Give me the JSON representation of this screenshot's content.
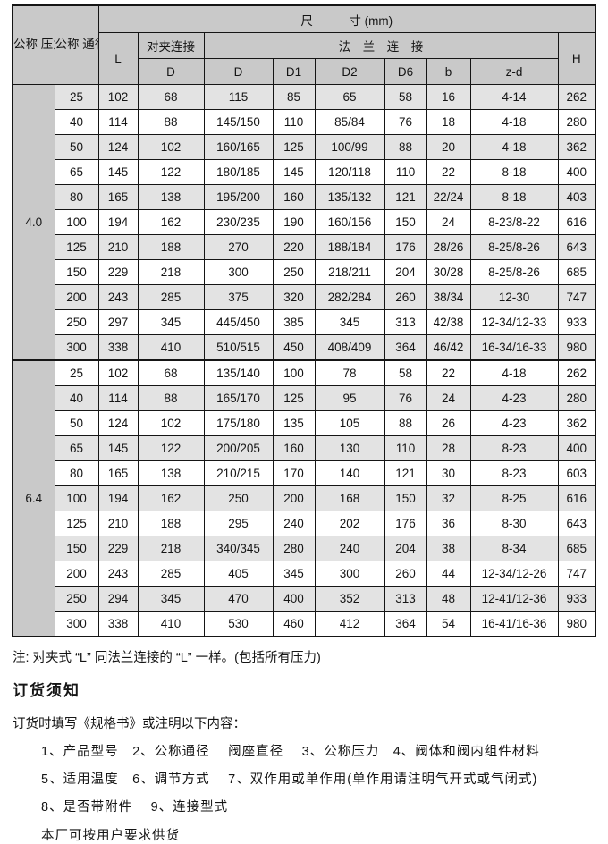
{
  "colors": {
    "header_bg": "#c9c9c9",
    "row_stripe_bg": "#e3e3e3",
    "border": "#151515"
  },
  "table": {
    "header": {
      "pn": "公称\n压力\nPN\n(MPa)",
      "dn": "公称\n通径\nDN\n(mm)",
      "size": "尺　　　寸  (mm)",
      "l": "L",
      "wafer": "对夹连接",
      "flange": "法　兰　连　接",
      "h": "H",
      "sub": [
        "D",
        "D",
        "D1",
        "D2",
        "D6",
        "b",
        "z-d"
      ]
    },
    "sections": [
      {
        "pn": "4.0",
        "rows": [
          [
            "25",
            "102",
            "68",
            "115",
            "85",
            "65",
            "58",
            "16",
            "4-14",
            "262"
          ],
          [
            "40",
            "114",
            "88",
            "145/150",
            "110",
            "85/84",
            "76",
            "18",
            "4-18",
            "280"
          ],
          [
            "50",
            "124",
            "102",
            "160/165",
            "125",
            "100/99",
            "88",
            "20",
            "4-18",
            "362"
          ],
          [
            "65",
            "145",
            "122",
            "180/185",
            "145",
            "120/118",
            "110",
            "22",
            "8-18",
            "400"
          ],
          [
            "80",
            "165",
            "138",
            "195/200",
            "160",
            "135/132",
            "121",
            "22/24",
            "8-18",
            "403"
          ],
          [
            "100",
            "194",
            "162",
            "230/235",
            "190",
            "160/156",
            "150",
            "24",
            "8-23/8-22",
            "616"
          ],
          [
            "125",
            "210",
            "188",
            "270",
            "220",
            "188/184",
            "176",
            "28/26",
            "8-25/8-26",
            "643"
          ],
          [
            "150",
            "229",
            "218",
            "300",
            "250",
            "218/211",
            "204",
            "30/28",
            "8-25/8-26",
            "685"
          ],
          [
            "200",
            "243",
            "285",
            "375",
            "320",
            "282/284",
            "260",
            "38/34",
            "12-30",
            "747"
          ],
          [
            "250",
            "297",
            "345",
            "445/450",
            "385",
            "345",
            "313",
            "42/38",
            "12-34/12-33",
            "933"
          ],
          [
            "300",
            "338",
            "410",
            "510/515",
            "450",
            "408/409",
            "364",
            "46/42",
            "16-34/16-33",
            "980"
          ]
        ]
      },
      {
        "pn": "6.4",
        "rows": [
          [
            "25",
            "102",
            "68",
            "135/140",
            "100",
            "78",
            "58",
            "22",
            "4-18",
            "262"
          ],
          [
            "40",
            "114",
            "88",
            "165/170",
            "125",
            "95",
            "76",
            "24",
            "4-23",
            "280"
          ],
          [
            "50",
            "124",
            "102",
            "175/180",
            "135",
            "105",
            "88",
            "26",
            "4-23",
            "362"
          ],
          [
            "65",
            "145",
            "122",
            "200/205",
            "160",
            "130",
            "110",
            "28",
            "8-23",
            "400"
          ],
          [
            "80",
            "165",
            "138",
            "210/215",
            "170",
            "140",
            "121",
            "30",
            "8-23",
            "603"
          ],
          [
            "100",
            "194",
            "162",
            "250",
            "200",
            "168",
            "150",
            "32",
            "8-25",
            "616"
          ],
          [
            "125",
            "210",
            "188",
            "295",
            "240",
            "202",
            "176",
            "36",
            "8-30",
            "643"
          ],
          [
            "150",
            "229",
            "218",
            "340/345",
            "280",
            "240",
            "204",
            "38",
            "8-34",
            "685"
          ],
          [
            "200",
            "243",
            "285",
            "405",
            "345",
            "300",
            "260",
            "44",
            "12-34/12-26",
            "747"
          ],
          [
            "250",
            "294",
            "345",
            "470",
            "400",
            "352",
            "313",
            "48",
            "12-41/12-36",
            "933"
          ],
          [
            "300",
            "338",
            "410",
            "530",
            "460",
            "412",
            "364",
            "54",
            "16-41/16-36",
            "980"
          ]
        ]
      }
    ]
  },
  "note": "注: 对夹式 “L” 同法兰连接的 “L” 一样。(包括所有压力)",
  "ordering": {
    "heading": "订货须知",
    "intro": "订货时填写《规格书》或注明以下内容：",
    "items": [
      "1、产品型号　2、公称通径　 阀座直径　 3、公称压力　4、阀体和阀内组件材料",
      "5、适用温度　6、调节方式　 7、双作用或单作用(单作用请注明气开式或气闭式)",
      "8、是否带附件　 9、连接型式"
    ],
    "footer": "本厂可按用户要求供货"
  }
}
